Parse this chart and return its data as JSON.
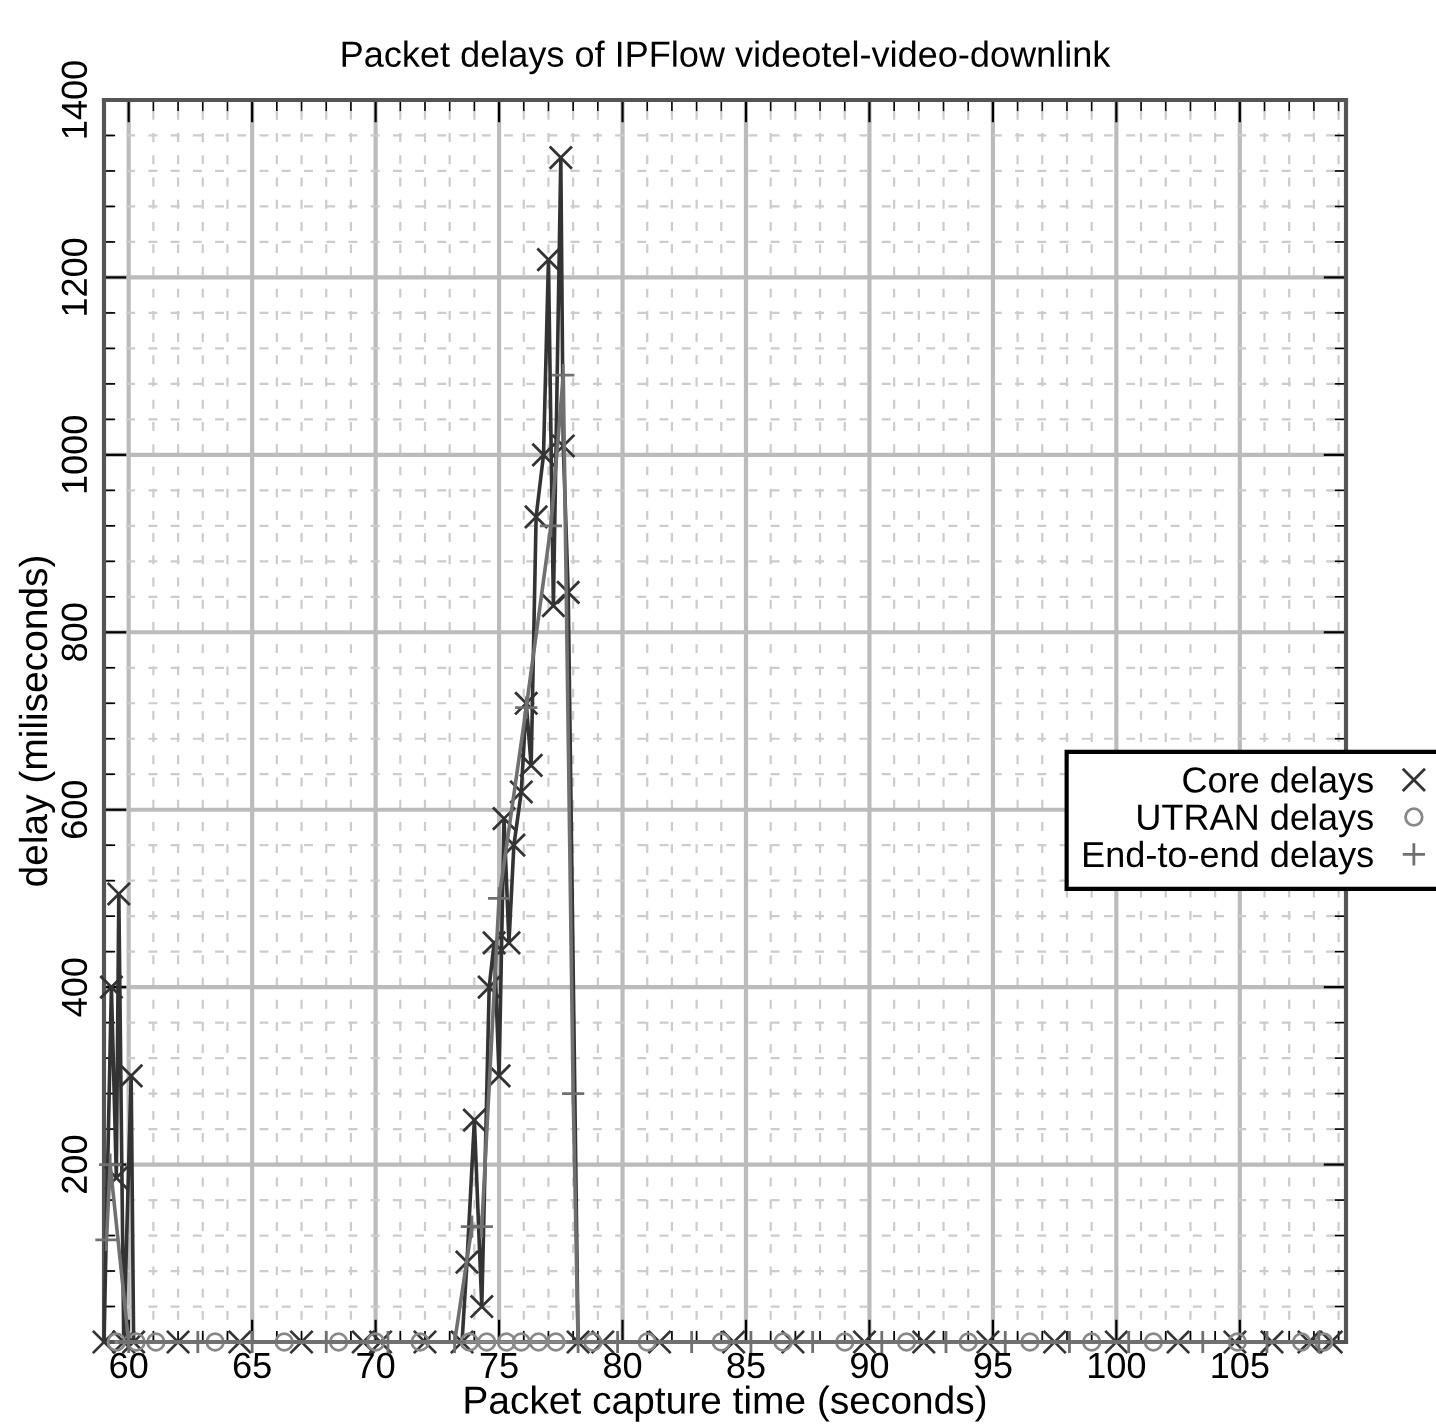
{
  "chart_data": {
    "type": "line",
    "title": "Packet delays of IPFlow videotel-video-downlink",
    "xlabel": "Packet capture time (seconds)",
    "ylabel": "delay (miliseconds)",
    "xlim": [
      59,
      109.3
    ],
    "ylim": [
      0,
      1400
    ],
    "xticks": [
      60,
      65,
      70,
      75,
      80,
      85,
      90,
      95,
      100,
      105
    ],
    "yticks": [
      200,
      400,
      600,
      800,
      1000,
      1200,
      1400
    ],
    "grid": true,
    "legend": "right",
    "series": [
      {
        "name": "Core delays",
        "color": "#333333",
        "marker": "cross",
        "x": [
          59.0,
          59.3,
          59.5,
          59.6,
          59.8,
          60.1,
          60.2,
          62.0,
          64.5,
          67.0,
          69.5,
          70.2,
          72.0,
          73.5,
          73.7,
          74.0,
          74.3,
          74.6,
          74.8,
          75.0,
          75.2,
          75.4,
          75.6,
          75.9,
          76.1,
          76.3,
          76.5,
          76.8,
          77.0,
          77.2,
          77.5,
          77.6,
          77.8,
          78.2,
          79.2,
          81.5,
          84.5,
          86.9,
          89.8,
          92.2,
          94.8,
          97.5,
          100.0,
          102.5,
          104.8,
          106.3,
          107.8,
          108.7
        ],
        "values": [
          0,
          400,
          185,
          505,
          0,
          300,
          0,
          0,
          0,
          0,
          0,
          0,
          0,
          0,
          90,
          250,
          40,
          400,
          450,
          300,
          590,
          450,
          560,
          620,
          720,
          650,
          930,
          1000,
          1220,
          830,
          1335,
          1010,
          845,
          0,
          0,
          0,
          0,
          0,
          0,
          0,
          0,
          0,
          0,
          0,
          0,
          0,
          0,
          0
        ]
      },
      {
        "name": "UTRAN delays",
        "color": "#888888",
        "marker": "circle",
        "x": [
          59.5,
          60.3,
          61.1,
          63.5,
          66.3,
          68.5,
          70.0,
          71.8,
          73.8,
          74.5,
          75.3,
          75.9,
          76.6,
          77.3,
          78.8,
          81.0,
          84.0,
          86.5,
          89.0,
          91.5,
          94.0,
          96.5,
          99.0,
          101.5,
          104.9,
          107.5,
          108.4
        ],
        "values": [
          0,
          0,
          0,
          0,
          0,
          0,
          0,
          0,
          0,
          0,
          0,
          0,
          0,
          0,
          0,
          0,
          0,
          0,
          0,
          0,
          0,
          0,
          0,
          0,
          0,
          0,
          0
        ]
      },
      {
        "name": "End-to-end delays",
        "color": "#707070",
        "marker": "plus",
        "x": [
          59.1,
          59.25,
          60.0,
          62.8,
          65.0,
          68.0,
          70.5,
          73.2,
          73.9,
          74.3,
          75.0,
          76.1,
          77.1,
          77.6,
          78.0,
          78.2,
          79.8,
          82.8,
          85.2,
          87.7,
          90.5,
          93.1,
          95.5,
          98.1,
          100.5,
          103.5,
          106.1,
          108.2
        ],
        "values": [
          115,
          200,
          0,
          0,
          0,
          0,
          0,
          0,
          130,
          130,
          500,
          715,
          920,
          1090,
          280,
          0,
          0,
          0,
          0,
          0,
          0,
          0,
          0,
          0,
          0,
          0,
          0,
          0
        ]
      }
    ]
  }
}
